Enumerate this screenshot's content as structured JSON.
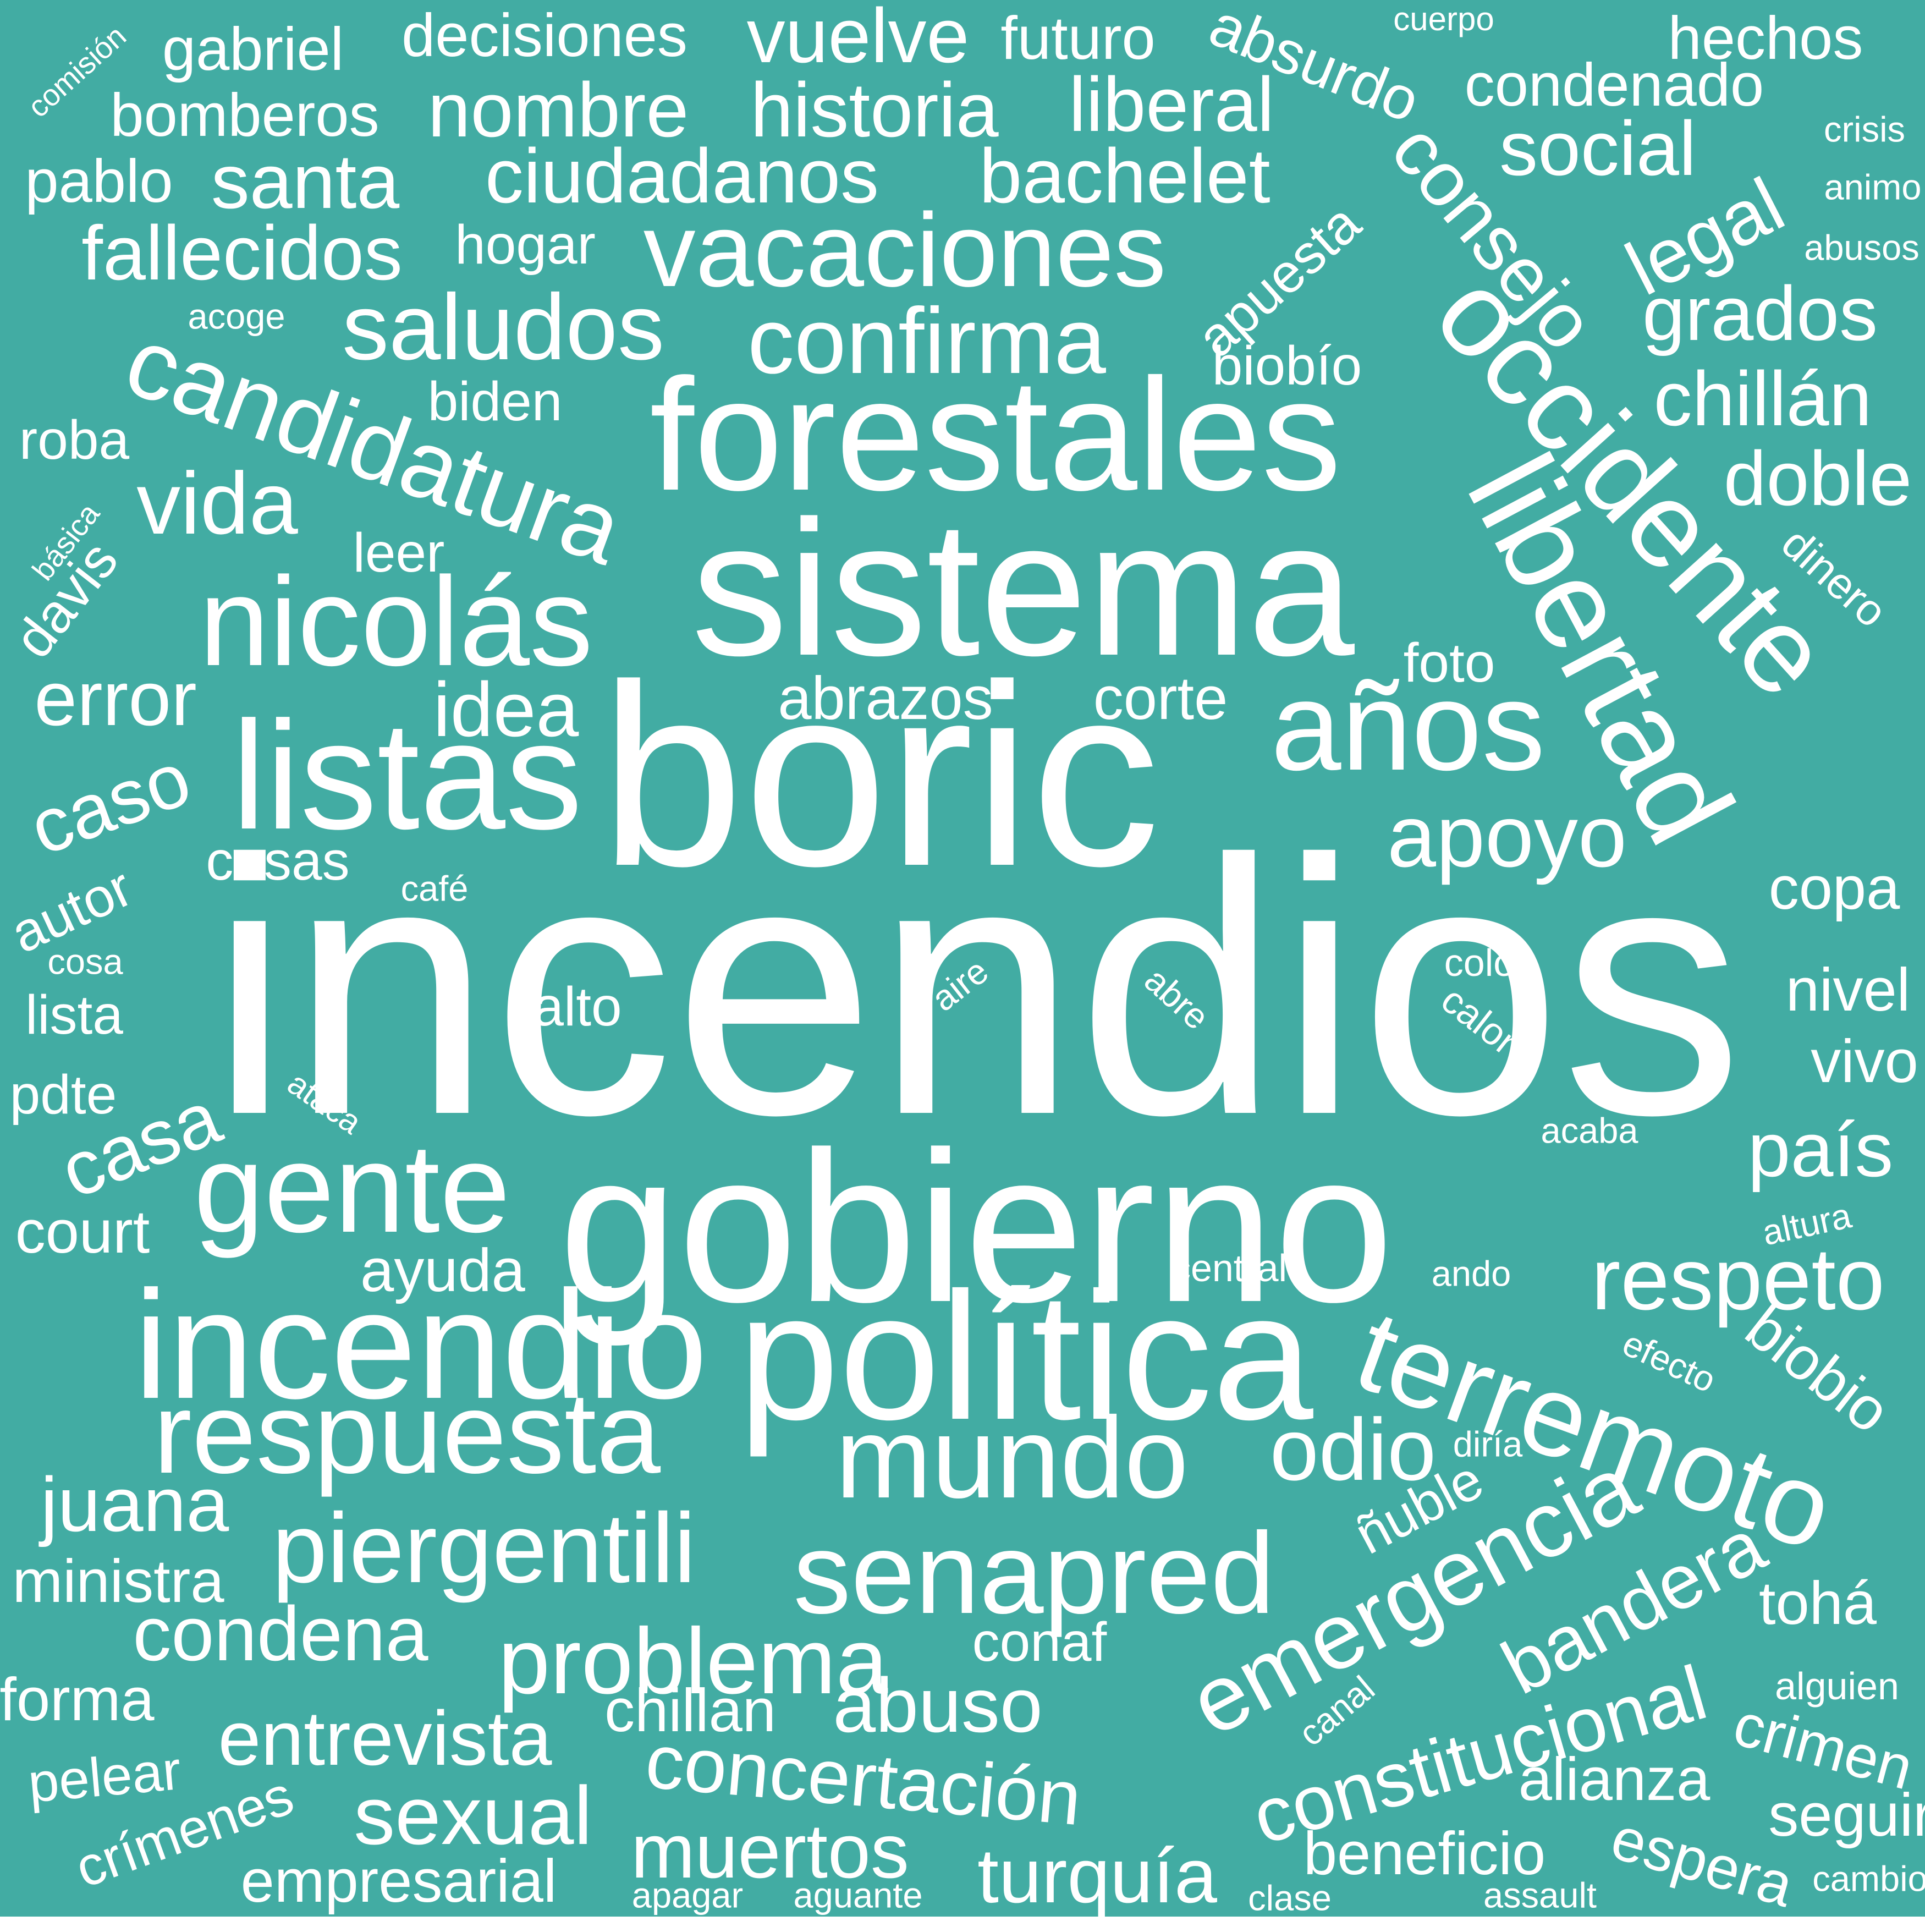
{
  "background_color": "#42aca3",
  "text_color": "#ffffff",
  "words": [
    "incendios",
    "boric",
    "gobierno",
    "sistema",
    "forestales",
    "política",
    "incendio",
    "listas",
    "nicolás",
    "libertad",
    "occidente",
    "años",
    "gente",
    "terremoto",
    "candidatura",
    "respuesta",
    "vacaciones",
    "mundo",
    "senapred",
    "emergencia",
    "piergentili",
    "confirma",
    "saludos",
    "problema",
    "apoyo",
    "respeto",
    "constitucional",
    "bandera",
    "condena",
    "vida",
    "sexual",
    "entrevista",
    "concertación",
    "odio",
    "muertos",
    "turquía",
    "bachelet",
    "ciudadanos",
    "historia",
    "social",
    "legal",
    "grados",
    "chillán",
    "consejo",
    "doble",
    "fallecidos",
    "nombre",
    "santa",
    "liberal",
    "vuelve",
    "decisiones",
    "gabriel",
    "bomberos",
    "pablo",
    "futuro",
    "hechos",
    "condenado",
    "absurdo",
    "país",
    "abuso",
    "error",
    "idea",
    "caso",
    "casa",
    "juana",
    "abrazos",
    "corte",
    "court",
    "ayuda",
    "forma",
    "ministra",
    "alianza",
    "seguir",
    "crimen",
    "beneficio",
    "espera",
    "empresarial",
    "crímenes",
    "pelear",
    "chillan",
    "conaf",
    "ñuble",
    "biobio",
    "nivel",
    "vivo",
    "copa",
    "tohá",
    "apuesta",
    "hogar",
    "biobío",
    "biden",
    "leer",
    "casas",
    "autor",
    "lista",
    "pdte",
    "davis",
    "roba",
    "foto",
    "dinero",
    "alto",
    "ando",
    "central",
    "acaba",
    "altura",
    "efecto",
    "diría",
    "canal",
    "alguien",
    "cambio",
    "assault",
    "clase",
    "aguante",
    "apagar",
    "colo",
    "calor",
    "abre",
    "aire",
    "ataca",
    "cosa",
    "café",
    "acoge",
    "crisis",
    "animo",
    "abusos",
    "cuerpo",
    "comisión",
    "básica"
  ]
}
